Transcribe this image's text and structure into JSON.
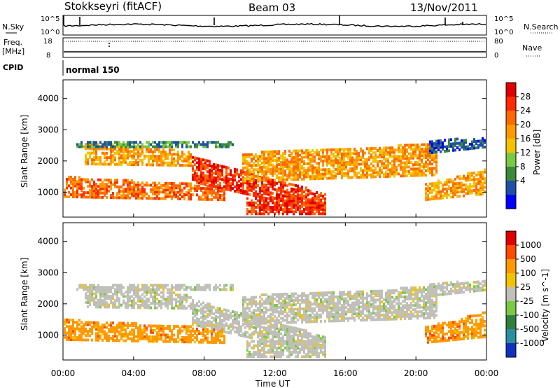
{
  "header": {
    "station": "Stokkseyri (fitACF)",
    "beam": "Beam 03",
    "date": "13/Nov/2011"
  },
  "noise_panel": {
    "left_label": "N.Sky",
    "right_label": "N.Search",
    "left_ticks": [
      "10^5",
      "10^0"
    ],
    "right_ticks": [
      "10^5",
      "10^0"
    ]
  },
  "freq_panel": {
    "left_label": "Freq.",
    "left_units": "[MHz]",
    "right_label": "Nave",
    "left_ticks": [
      "18",
      "8"
    ],
    "right_ticks": [
      "80",
      "0"
    ]
  },
  "cpid": {
    "label": "CPID",
    "program": "normal 150"
  },
  "chart_data": [
    {
      "type": "heatmap",
      "name": "power",
      "ylabel": "Slant Range [km]",
      "y_ticks": [
        "4000",
        "3000",
        "2000",
        "1000"
      ],
      "ylim": [
        200,
        4600
      ],
      "colorbar_label": "Power [dB]",
      "colorbar_ticks": [
        "28",
        "24",
        "20",
        "16",
        "12",
        "8",
        "4"
      ],
      "colors": [
        "#0000ff",
        "#1f4fa8",
        "#3a8a3a",
        "#7ac943",
        "#f2c300",
        "#ff9900",
        "#ff6a00",
        "#ff2a00",
        "#e00000"
      ]
    },
    {
      "type": "heatmap",
      "name": "velocity",
      "ylabel": "Slant Range [km]",
      "y_ticks": [
        "4000",
        "3000",
        "2000",
        "1000"
      ],
      "ylim": [
        200,
        4600
      ],
      "colorbar_label": "Velocity [m s^-1]",
      "colorbar_ticks": [
        "1000",
        "500",
        "100",
        "25",
        "-25",
        "-100",
        "-500",
        "-1000"
      ],
      "colors": [
        "#1030c0",
        "#2a8fa0",
        "#2f7f3f",
        "#7ac943",
        "#c0c0b8",
        "#f2c300",
        "#ff9900",
        "#ff4a00",
        "#e00000"
      ]
    }
  ],
  "x_axis": {
    "label": "Time UT",
    "ticks": [
      "00:00",
      "04:00",
      "08:00",
      "12:00",
      "16:00",
      "20:00",
      "00:00"
    ]
  }
}
